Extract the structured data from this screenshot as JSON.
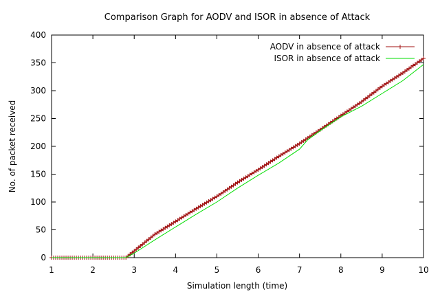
{
  "chart_data": {
    "type": "line",
    "title": "Comparison Graph for AODV and ISOR in absence of Attack",
    "xlabel": "Simulation length (time)",
    "ylabel": "No. of packet received",
    "xlim": [
      1,
      10
    ],
    "ylim": [
      0,
      400
    ],
    "xticks": [
      1,
      2,
      3,
      4,
      5,
      6,
      7,
      8,
      9,
      10
    ],
    "yticks": [
      0,
      50,
      100,
      150,
      200,
      250,
      300,
      350,
      400
    ],
    "grid": false,
    "legend_position": "top-right",
    "series": [
      {
        "name": "AODV in absence of attack",
        "color": "#a01010",
        "marker": "plus",
        "x": [
          1.0,
          1.5,
          2.0,
          2.5,
          2.75,
          2.8,
          3.0,
          3.5,
          4.0,
          4.5,
          5.0,
          5.5,
          6.0,
          6.5,
          7.0,
          7.5,
          8.0,
          8.5,
          9.0,
          9.5,
          10.0
        ],
        "y": [
          0,
          0,
          0,
          0,
          0,
          0,
          12,
          42,
          65,
          88,
          110,
          135,
          158,
          182,
          205,
          230,
          255,
          280,
          308,
          332,
          358
        ]
      },
      {
        "name": "ISOR in absence of attack",
        "color": "#00dd00",
        "marker": "none",
        "x": [
          1.0,
          1.5,
          2.0,
          2.5,
          2.8,
          3.0,
          3.5,
          4.0,
          4.5,
          5.0,
          5.5,
          6.0,
          6.5,
          7.0,
          7.2,
          7.5,
          8.0,
          8.5,
          9.0,
          9.5,
          10.0
        ],
        "y": [
          0,
          0,
          0,
          0,
          0,
          8,
          32,
          55,
          78,
          100,
          125,
          148,
          170,
          195,
          212,
          228,
          253,
          272,
          295,
          318,
          347
        ]
      }
    ]
  }
}
